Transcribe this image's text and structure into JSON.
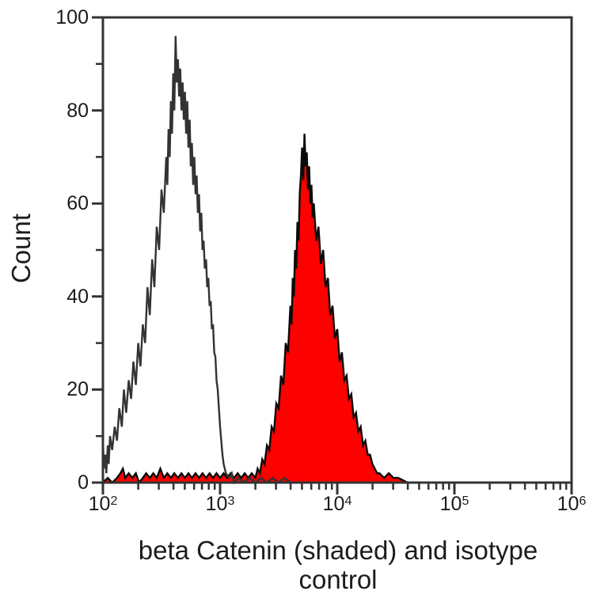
{
  "labels": {
    "y_axis_title": "Count",
    "x_axis_title_line1": "beta Catenin (shaded) and isotype",
    "x_axis_title_line2": "control"
  },
  "chart_data": {
    "type": "area",
    "subtype": "flow-cytometry-histogram-overlay",
    "title": "",
    "xlabel": "beta Catenin (shaded) and isotype control",
    "ylabel": "Count",
    "x_scale": "log10",
    "xlim": [
      100,
      1000000
    ],
    "ylim": [
      0,
      100
    ],
    "grid": false,
    "legend": "none",
    "x_ticks": [
      100,
      1000,
      10000,
      100000,
      1000000
    ],
    "x_tick_labels": [
      {
        "base": "10",
        "sup": "2"
      },
      {
        "base": "10",
        "sup": "3"
      },
      {
        "base": "10",
        "sup": "4"
      },
      {
        "base": "10",
        "sup": "5"
      },
      {
        "base": "10",
        "sup": "6"
      }
    ],
    "y_ticks": [
      0,
      20,
      40,
      60,
      80,
      100
    ],
    "y_tick_labels": [
      "0",
      "20",
      "40",
      "60",
      "80",
      "100"
    ],
    "y_minor_ticks": [
      10,
      30,
      50,
      70,
      90
    ],
    "colors": {
      "shaded_fill": "#fd0000",
      "shaded_outline": "#0b0b0b",
      "open_line": "#333333",
      "axis": "#333333",
      "text": "#1c1c1c"
    },
    "series": [
      {
        "name": "isotype control",
        "style": "open",
        "peak_x": 417,
        "peak_count": 96,
        "points": [
          [
            100,
            9
          ],
          [
            102,
            3
          ],
          [
            105,
            6
          ],
          [
            107,
            2
          ],
          [
            110,
            8
          ],
          [
            112,
            4
          ],
          [
            115,
            10
          ],
          [
            120,
            7
          ],
          [
            126,
            12
          ],
          [
            132,
            9
          ],
          [
            138,
            16
          ],
          [
            145,
            12
          ],
          [
            151,
            20
          ],
          [
            158,
            15
          ],
          [
            166,
            22
          ],
          [
            174,
            18
          ],
          [
            182,
            26
          ],
          [
            191,
            21
          ],
          [
            200,
            30
          ],
          [
            209,
            25
          ],
          [
            219,
            34
          ],
          [
            229,
            30
          ],
          [
            240,
            42
          ],
          [
            251,
            36
          ],
          [
            263,
            48
          ],
          [
            275,
            42
          ],
          [
            288,
            55
          ],
          [
            302,
            50
          ],
          [
            316,
            63
          ],
          [
            331,
            58
          ],
          [
            347,
            70
          ],
          [
            355,
            64
          ],
          [
            363,
            76
          ],
          [
            372,
            70
          ],
          [
            380,
            82
          ],
          [
            389,
            75
          ],
          [
            398,
            88
          ],
          [
            407,
            80
          ],
          [
            417,
            96
          ],
          [
            427,
            86
          ],
          [
            437,
            91
          ],
          [
            447,
            83
          ],
          [
            457,
            89
          ],
          [
            468,
            80
          ],
          [
            479,
            86
          ],
          [
            490,
            78
          ],
          [
            501,
            84
          ],
          [
            513,
            75
          ],
          [
            525,
            82
          ],
          [
            537,
            72
          ],
          [
            550,
            78
          ],
          [
            562,
            68
          ],
          [
            575,
            73
          ],
          [
            589,
            64
          ],
          [
            603,
            70
          ],
          [
            617,
            62
          ],
          [
            631,
            66
          ],
          [
            646,
            58
          ],
          [
            661,
            62
          ],
          [
            676,
            54
          ],
          [
            692,
            58
          ],
          [
            708,
            50
          ],
          [
            724,
            52
          ],
          [
            741,
            46
          ],
          [
            759,
            48
          ],
          [
            776,
            42
          ],
          [
            794,
            44
          ],
          [
            813,
            38
          ],
          [
            832,
            39
          ],
          [
            851,
            33
          ],
          [
            871,
            34
          ],
          [
            891,
            28
          ],
          [
            912,
            27
          ],
          [
            933,
            22
          ],
          [
            955,
            20
          ],
          [
            977,
            16
          ],
          [
            1000,
            12
          ],
          [
            1023,
            9
          ],
          [
            1047,
            6
          ],
          [
            1072,
            4
          ],
          [
            1096,
            3
          ],
          [
            1122,
            2
          ],
          [
            1202,
            1
          ],
          [
            1259,
            2
          ],
          [
            1318,
            0
          ],
          [
            1445,
            1
          ],
          [
            1585,
            0
          ],
          [
            1778,
            1
          ],
          [
            2000,
            0
          ],
          [
            2239,
            1
          ],
          [
            2512,
            0
          ],
          [
            2818,
            1
          ],
          [
            3162,
            0
          ],
          [
            3548,
            1
          ],
          [
            3981,
            0
          ],
          [
            5012,
            0
          ],
          [
            10000,
            0
          ],
          [
            100000,
            0
          ],
          [
            1000000,
            0
          ]
        ]
      },
      {
        "name": "beta Catenin (shaded)",
        "style": "filled",
        "peak_x": 5248,
        "peak_count": 75,
        "points": [
          [
            100,
            0
          ],
          [
            110,
            1
          ],
          [
            120,
            0
          ],
          [
            132,
            1
          ],
          [
            141,
            2
          ],
          [
            148,
            3
          ],
          [
            155,
            1
          ],
          [
            166,
            2
          ],
          [
            178,
            1
          ],
          [
            191,
            2
          ],
          [
            204,
            0
          ],
          [
            219,
            1
          ],
          [
            234,
            2
          ],
          [
            251,
            1
          ],
          [
            269,
            2
          ],
          [
            288,
            1
          ],
          [
            309,
            3
          ],
          [
            331,
            1
          ],
          [
            355,
            2
          ],
          [
            380,
            1
          ],
          [
            407,
            2
          ],
          [
            437,
            1
          ],
          [
            468,
            2
          ],
          [
            501,
            1
          ],
          [
            537,
            2
          ],
          [
            575,
            1
          ],
          [
            617,
            2
          ],
          [
            661,
            1
          ],
          [
            708,
            2
          ],
          [
            759,
            1
          ],
          [
            813,
            2
          ],
          [
            871,
            1
          ],
          [
            933,
            2
          ],
          [
            1000,
            1
          ],
          [
            1072,
            2
          ],
          [
            1148,
            1
          ],
          [
            1230,
            2
          ],
          [
            1318,
            1
          ],
          [
            1413,
            2
          ],
          [
            1514,
            1
          ],
          [
            1622,
            2
          ],
          [
            1738,
            1
          ],
          [
            1862,
            2
          ],
          [
            2000,
            1
          ],
          [
            2089,
            3
          ],
          [
            2188,
            2
          ],
          [
            2291,
            5
          ],
          [
            2399,
            4
          ],
          [
            2512,
            8
          ],
          [
            2630,
            7
          ],
          [
            2754,
            12
          ],
          [
            2884,
            11
          ],
          [
            3020,
            17
          ],
          [
            3162,
            16
          ],
          [
            3311,
            23
          ],
          [
            3467,
            21
          ],
          [
            3631,
            30
          ],
          [
            3802,
            28
          ],
          [
            3981,
            38
          ],
          [
            4074,
            34
          ],
          [
            4169,
            44
          ],
          [
            4266,
            40
          ],
          [
            4365,
            50
          ],
          [
            4467,
            46
          ],
          [
            4571,
            56
          ],
          [
            4677,
            52
          ],
          [
            4786,
            62
          ],
          [
            4898,
            66
          ],
          [
            5012,
            72
          ],
          [
            5129,
            65
          ],
          [
            5248,
            75
          ],
          [
            5370,
            68
          ],
          [
            5495,
            71
          ],
          [
            5623,
            63
          ],
          [
            5754,
            68
          ],
          [
            5888,
            60
          ],
          [
            6026,
            64
          ],
          [
            6166,
            57
          ],
          [
            6310,
            60
          ],
          [
            6607,
            52
          ],
          [
            6918,
            55
          ],
          [
            7244,
            47
          ],
          [
            7586,
            50
          ],
          [
            7943,
            42
          ],
          [
            8318,
            44
          ],
          [
            8710,
            36
          ],
          [
            9120,
            38
          ],
          [
            9550,
            31
          ],
          [
            10000,
            33
          ],
          [
            10471,
            26
          ],
          [
            10965,
            28
          ],
          [
            11482,
            22
          ],
          [
            12023,
            23
          ],
          [
            12589,
            18
          ],
          [
            13183,
            19
          ],
          [
            13804,
            14
          ],
          [
            14454,
            15
          ],
          [
            15136,
            11
          ],
          [
            15849,
            12
          ],
          [
            16596,
            8
          ],
          [
            17378,
            9
          ],
          [
            18197,
            6
          ],
          [
            19055,
            6
          ],
          [
            19953,
            4
          ],
          [
            20893,
            3
          ],
          [
            21878,
            2
          ],
          [
            22909,
            2
          ],
          [
            25119,
            1
          ],
          [
            27542,
            2
          ],
          [
            30200,
            1
          ],
          [
            33113,
            1
          ],
          [
            39811,
            0
          ],
          [
            100000,
            0
          ],
          [
            1000000,
            0
          ]
        ]
      }
    ]
  }
}
